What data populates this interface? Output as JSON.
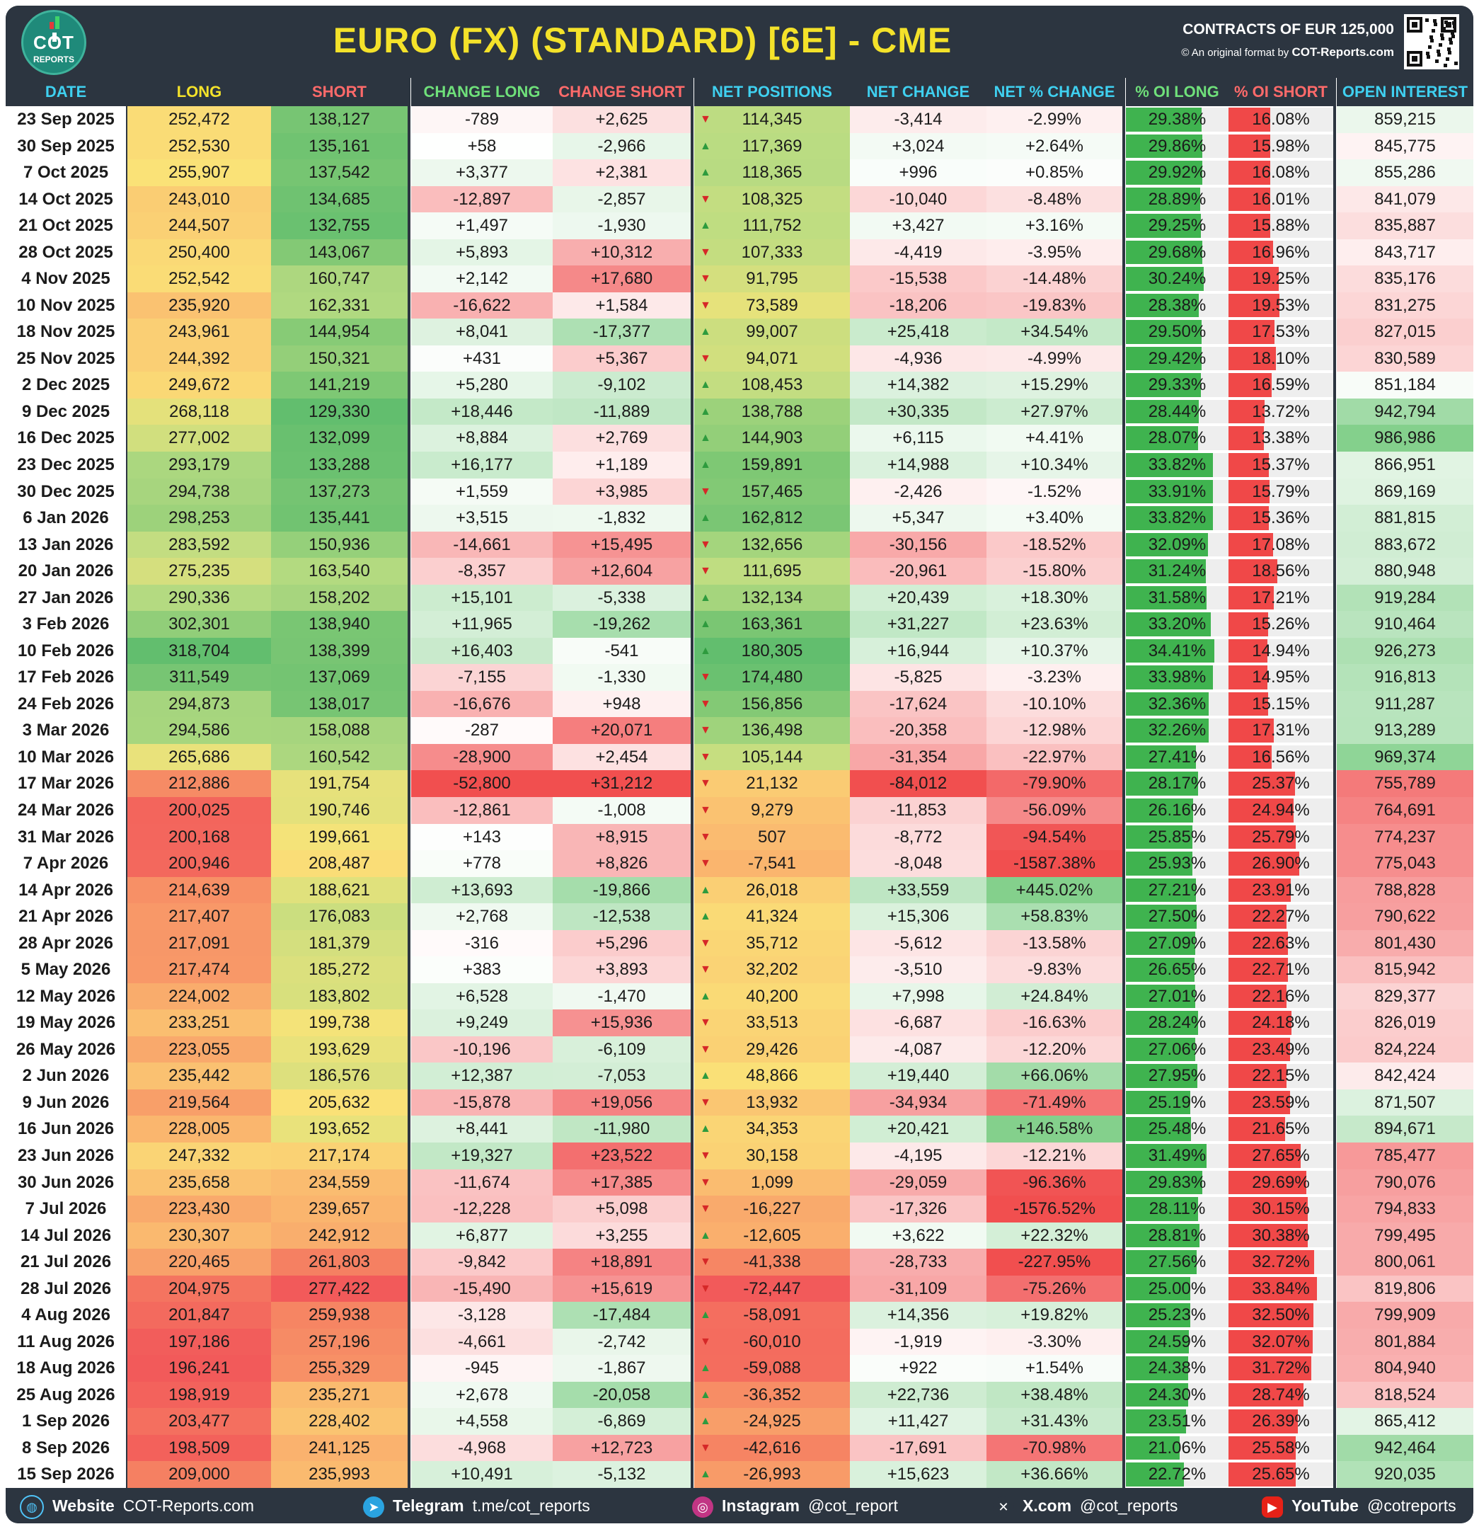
{
  "header": {
    "title": "EURO (FX) (STANDARD) [6E] - CME",
    "contracts": "CONTRACTS OF EUR 125,000",
    "credit_prefix": "© An original format by",
    "credit_site": "COT-Reports.com",
    "logo_text": "COT",
    "logo_sub": "REPORTS"
  },
  "columns": [
    "DATE",
    "LONG",
    "SHORT",
    "CHANGE LONG",
    "CHANGE SHORT",
    "NET POSITIONS",
    "NET CHANGE",
    "NET % CHANGE",
    "% OI LONG",
    "% OI SHORT",
    "OPEN INTEREST"
  ],
  "colors": {
    "header_bg": "#2c3540",
    "title": "#f4e22a",
    "date_header": "#3fd0f0",
    "long_header": "#f4e22a",
    "short_header": "#ff6a6a",
    "green_header": "#6fe07a",
    "up_arrow": "#2e9b3e",
    "down_arrow": "#d62828",
    "oi_long_bar": "#3fb34f",
    "oi_short_bar": "#f04848"
  },
  "footer": [
    {
      "icon": "globe-icon",
      "label": "Website",
      "value": "COT-Reports.com"
    },
    {
      "icon": "telegram-icon",
      "label": "Telegram",
      "value": "t.me/cot_reports"
    },
    {
      "icon": "instagram-icon",
      "label": "Instagram",
      "value": "@cot_report"
    },
    {
      "icon": "x-icon",
      "label": "X.com",
      "value": "@cot_reports"
    },
    {
      "icon": "youtube-icon",
      "label": "YouTube",
      "value": "@cotreports"
    }
  ],
  "chart_data": {
    "type": "table",
    "title": "EURO (FX) (STANDARD) [6E] - CME",
    "rows": [
      [
        "23 Sep 2025",
        "252,472",
        "138,127",
        "-789",
        "+2,625",
        "down",
        "114,345",
        "-3,414",
        "-2.99%",
        "29.38%",
        "16.08%",
        "859,215"
      ],
      [
        "30 Sep 2025",
        "252,530",
        "135,161",
        "+58",
        "-2,966",
        "up",
        "117,369",
        "+3,024",
        "+2.64%",
        "29.86%",
        "15.98%",
        "845,775"
      ],
      [
        "7 Oct 2025",
        "255,907",
        "137,542",
        "+3,377",
        "+2,381",
        "up",
        "118,365",
        "+996",
        "+0.85%",
        "29.92%",
        "16.08%",
        "855,286"
      ],
      [
        "14 Oct 2025",
        "243,010",
        "134,685",
        "-12,897",
        "-2,857",
        "down",
        "108,325",
        "-10,040",
        "-8.48%",
        "28.89%",
        "16.01%",
        "841,079"
      ],
      [
        "21 Oct 2025",
        "244,507",
        "132,755",
        "+1,497",
        "-1,930",
        "up",
        "111,752",
        "+3,427",
        "+3.16%",
        "29.25%",
        "15.88%",
        "835,887"
      ],
      [
        "28 Oct 2025",
        "250,400",
        "143,067",
        "+5,893",
        "+10,312",
        "down",
        "107,333",
        "-4,419",
        "-3.95%",
        "29.68%",
        "16.96%",
        "843,717"
      ],
      [
        "4 Nov 2025",
        "252,542",
        "160,747",
        "+2,142",
        "+17,680",
        "down",
        "91,795",
        "-15,538",
        "-14.48%",
        "30.24%",
        "19.25%",
        "835,176"
      ],
      [
        "10 Nov 2025",
        "235,920",
        "162,331",
        "-16,622",
        "+1,584",
        "down",
        "73,589",
        "-18,206",
        "-19.83%",
        "28.38%",
        "19.53%",
        "831,275"
      ],
      [
        "18 Nov 2025",
        "243,961",
        "144,954",
        "+8,041",
        "-17,377",
        "up",
        "99,007",
        "+25,418",
        "+34.54%",
        "29.50%",
        "17.53%",
        "827,015"
      ],
      [
        "25 Nov 2025",
        "244,392",
        "150,321",
        "+431",
        "+5,367",
        "down",
        "94,071",
        "-4,936",
        "-4.99%",
        "29.42%",
        "18.10%",
        "830,589"
      ],
      [
        "2 Dec 2025",
        "249,672",
        "141,219",
        "+5,280",
        "-9,102",
        "up",
        "108,453",
        "+14,382",
        "+15.29%",
        "29.33%",
        "16.59%",
        "851,184"
      ],
      [
        "9 Dec 2025",
        "268,118",
        "129,330",
        "+18,446",
        "-11,889",
        "up",
        "138,788",
        "+30,335",
        "+27.97%",
        "28.44%",
        "13.72%",
        "942,794"
      ],
      [
        "16 Dec 2025",
        "277,002",
        "132,099",
        "+8,884",
        "+2,769",
        "up",
        "144,903",
        "+6,115",
        "+4.41%",
        "28.07%",
        "13.38%",
        "986,986"
      ],
      [
        "23 Dec 2025",
        "293,179",
        "133,288",
        "+16,177",
        "+1,189",
        "up",
        "159,891",
        "+14,988",
        "+10.34%",
        "33.82%",
        "15.37%",
        "866,951"
      ],
      [
        "30 Dec 2025",
        "294,738",
        "137,273",
        "+1,559",
        "+3,985",
        "down",
        "157,465",
        "-2,426",
        "-1.52%",
        "33.91%",
        "15.79%",
        "869,169"
      ],
      [
        "6 Jan 2026",
        "298,253",
        "135,441",
        "+3,515",
        "-1,832",
        "up",
        "162,812",
        "+5,347",
        "+3.40%",
        "33.82%",
        "15.36%",
        "881,815"
      ],
      [
        "13 Jan 2026",
        "283,592",
        "150,936",
        "-14,661",
        "+15,495",
        "down",
        "132,656",
        "-30,156",
        "-18.52%",
        "32.09%",
        "17.08%",
        "883,672"
      ],
      [
        "20 Jan 2026",
        "275,235",
        "163,540",
        "-8,357",
        "+12,604",
        "down",
        "111,695",
        "-20,961",
        "-15.80%",
        "31.24%",
        "18.56%",
        "880,948"
      ],
      [
        "27 Jan 2026",
        "290,336",
        "158,202",
        "+15,101",
        "-5,338",
        "up",
        "132,134",
        "+20,439",
        "+18.30%",
        "31.58%",
        "17.21%",
        "919,284"
      ],
      [
        "3 Feb 2026",
        "302,301",
        "138,940",
        "+11,965",
        "-19,262",
        "up",
        "163,361",
        "+31,227",
        "+23.63%",
        "33.20%",
        "15.26%",
        "910,464"
      ],
      [
        "10 Feb 2026",
        "318,704",
        "138,399",
        "+16,403",
        "-541",
        "up",
        "180,305",
        "+16,944",
        "+10.37%",
        "34.41%",
        "14.94%",
        "926,273"
      ],
      [
        "17 Feb 2026",
        "311,549",
        "137,069",
        "-7,155",
        "-1,330",
        "down",
        "174,480",
        "-5,825",
        "-3.23%",
        "33.98%",
        "14.95%",
        "916,813"
      ],
      [
        "24 Feb 2026",
        "294,873",
        "138,017",
        "-16,676",
        "+948",
        "down",
        "156,856",
        "-17,624",
        "-10.10%",
        "32.36%",
        "15.15%",
        "911,287"
      ],
      [
        "3 Mar 2026",
        "294,586",
        "158,088",
        "-287",
        "+20,071",
        "down",
        "136,498",
        "-20,358",
        "-12.98%",
        "32.26%",
        "17.31%",
        "913,289"
      ],
      [
        "10 Mar 2026",
        "265,686",
        "160,542",
        "-28,900",
        "+2,454",
        "down",
        "105,144",
        "-31,354",
        "-22.97%",
        "27.41%",
        "16.56%",
        "969,374"
      ],
      [
        "17 Mar 2026",
        "212,886",
        "191,754",
        "-52,800",
        "+31,212",
        "down",
        "21,132",
        "-84,012",
        "-79.90%",
        "28.17%",
        "25.37%",
        "755,789"
      ],
      [
        "24 Mar 2026",
        "200,025",
        "190,746",
        "-12,861",
        "-1,008",
        "down",
        "9,279",
        "-11,853",
        "-56.09%",
        "26.16%",
        "24.94%",
        "764,691"
      ],
      [
        "31 Mar 2026",
        "200,168",
        "199,661",
        "+143",
        "+8,915",
        "down",
        "507",
        "-8,772",
        "-94.54%",
        "25.85%",
        "25.79%",
        "774,237"
      ],
      [
        "7 Apr 2026",
        "200,946",
        "208,487",
        "+778",
        "+8,826",
        "down",
        "-7,541",
        "-8,048",
        "-1587.38%",
        "25.93%",
        "26.90%",
        "775,043"
      ],
      [
        "14 Apr 2026",
        "214,639",
        "188,621",
        "+13,693",
        "-19,866",
        "up",
        "26,018",
        "+33,559",
        "+445.02%",
        "27.21%",
        "23.91%",
        "788,828"
      ],
      [
        "21 Apr 2026",
        "217,407",
        "176,083",
        "+2,768",
        "-12,538",
        "up",
        "41,324",
        "+15,306",
        "+58.83%",
        "27.50%",
        "22.27%",
        "790,622"
      ],
      [
        "28 Apr 2026",
        "217,091",
        "181,379",
        "-316",
        "+5,296",
        "down",
        "35,712",
        "-5,612",
        "-13.58%",
        "27.09%",
        "22.63%",
        "801,430"
      ],
      [
        "5 May 2026",
        "217,474",
        "185,272",
        "+383",
        "+3,893",
        "down",
        "32,202",
        "-3,510",
        "-9.83%",
        "26.65%",
        "22.71%",
        "815,942"
      ],
      [
        "12 May 2026",
        "224,002",
        "183,802",
        "+6,528",
        "-1,470",
        "up",
        "40,200",
        "+7,998",
        "+24.84%",
        "27.01%",
        "22.16%",
        "829,377"
      ],
      [
        "19 May 2026",
        "233,251",
        "199,738",
        "+9,249",
        "+15,936",
        "down",
        "33,513",
        "-6,687",
        "-16.63%",
        "28.24%",
        "24.18%",
        "826,019"
      ],
      [
        "26 May 2026",
        "223,055",
        "193,629",
        "-10,196",
        "-6,109",
        "down",
        "29,426",
        "-4,087",
        "-12.20%",
        "27.06%",
        "23.49%",
        "824,224"
      ],
      [
        "2 Jun 2026",
        "235,442",
        "186,576",
        "+12,387",
        "-7,053",
        "up",
        "48,866",
        "+19,440",
        "+66.06%",
        "27.95%",
        "22.15%",
        "842,424"
      ],
      [
        "9 Jun 2026",
        "219,564",
        "205,632",
        "-15,878",
        "+19,056",
        "down",
        "13,932",
        "-34,934",
        "-71.49%",
        "25.19%",
        "23.59%",
        "871,507"
      ],
      [
        "16 Jun 2026",
        "228,005",
        "193,652",
        "+8,441",
        "-11,980",
        "up",
        "34,353",
        "+20,421",
        "+146.58%",
        "25.48%",
        "21.65%",
        "894,671"
      ],
      [
        "23 Jun 2026",
        "247,332",
        "217,174",
        "+19,327",
        "+23,522",
        "down",
        "30,158",
        "-4,195",
        "-12.21%",
        "31.49%",
        "27.65%",
        "785,477"
      ],
      [
        "30 Jun 2026",
        "235,658",
        "234,559",
        "-11,674",
        "+17,385",
        "down",
        "1,099",
        "-29,059",
        "-96.36%",
        "29.83%",
        "29.69%",
        "790,076"
      ],
      [
        "7 Jul 2026",
        "223,430",
        "239,657",
        "-12,228",
        "+5,098",
        "down",
        "-16,227",
        "-17,326",
        "-1576.52%",
        "28.11%",
        "30.15%",
        "794,833"
      ],
      [
        "14 Jul 2026",
        "230,307",
        "242,912",
        "+6,877",
        "+3,255",
        "up",
        "-12,605",
        "+3,622",
        "+22.32%",
        "28.81%",
        "30.38%",
        "799,495"
      ],
      [
        "21 Jul 2026",
        "220,465",
        "261,803",
        "-9,842",
        "+18,891",
        "down",
        "-41,338",
        "-28,733",
        "-227.95%",
        "27.56%",
        "32.72%",
        "800,061"
      ],
      [
        "28 Jul 2026",
        "204,975",
        "277,422",
        "-15,490",
        "+15,619",
        "down",
        "-72,447",
        "-31,109",
        "-75.26%",
        "25.00%",
        "33.84%",
        "819,806"
      ],
      [
        "4 Aug 2026",
        "201,847",
        "259,938",
        "-3,128",
        "-17,484",
        "up",
        "-58,091",
        "+14,356",
        "+19.82%",
        "25.23%",
        "32.50%",
        "799,909"
      ],
      [
        "11 Aug 2026",
        "197,186",
        "257,196",
        "-4,661",
        "-2,742",
        "down",
        "-60,010",
        "-1,919",
        "-3.30%",
        "24.59%",
        "32.07%",
        "801,884"
      ],
      [
        "18 Aug 2026",
        "196,241",
        "255,329",
        "-945",
        "-1,867",
        "up",
        "-59,088",
        "+922",
        "+1.54%",
        "24.38%",
        "31.72%",
        "804,940"
      ],
      [
        "25 Aug 2026",
        "198,919",
        "235,271",
        "+2,678",
        "-20,058",
        "up",
        "-36,352",
        "+22,736",
        "+38.48%",
        "24.30%",
        "28.74%",
        "818,524"
      ],
      [
        "1 Sep 2026",
        "203,477",
        "228,402",
        "+4,558",
        "-6,869",
        "up",
        "-24,925",
        "+11,427",
        "+31.43%",
        "23.51%",
        "26.39%",
        "865,412"
      ],
      [
        "8 Sep 2026",
        "198,509",
        "241,125",
        "-4,968",
        "+12,723",
        "down",
        "-42,616",
        "-17,691",
        "-70.98%",
        "21.06%",
        "25.58%",
        "942,464"
      ],
      [
        "15 Sep 2026",
        "209,000",
        "235,993",
        "+10,491",
        "-5,132",
        "up",
        "-26,993",
        "+15,623",
        "+36.66%",
        "22.72%",
        "25.65%",
        "920,035"
      ]
    ]
  }
}
